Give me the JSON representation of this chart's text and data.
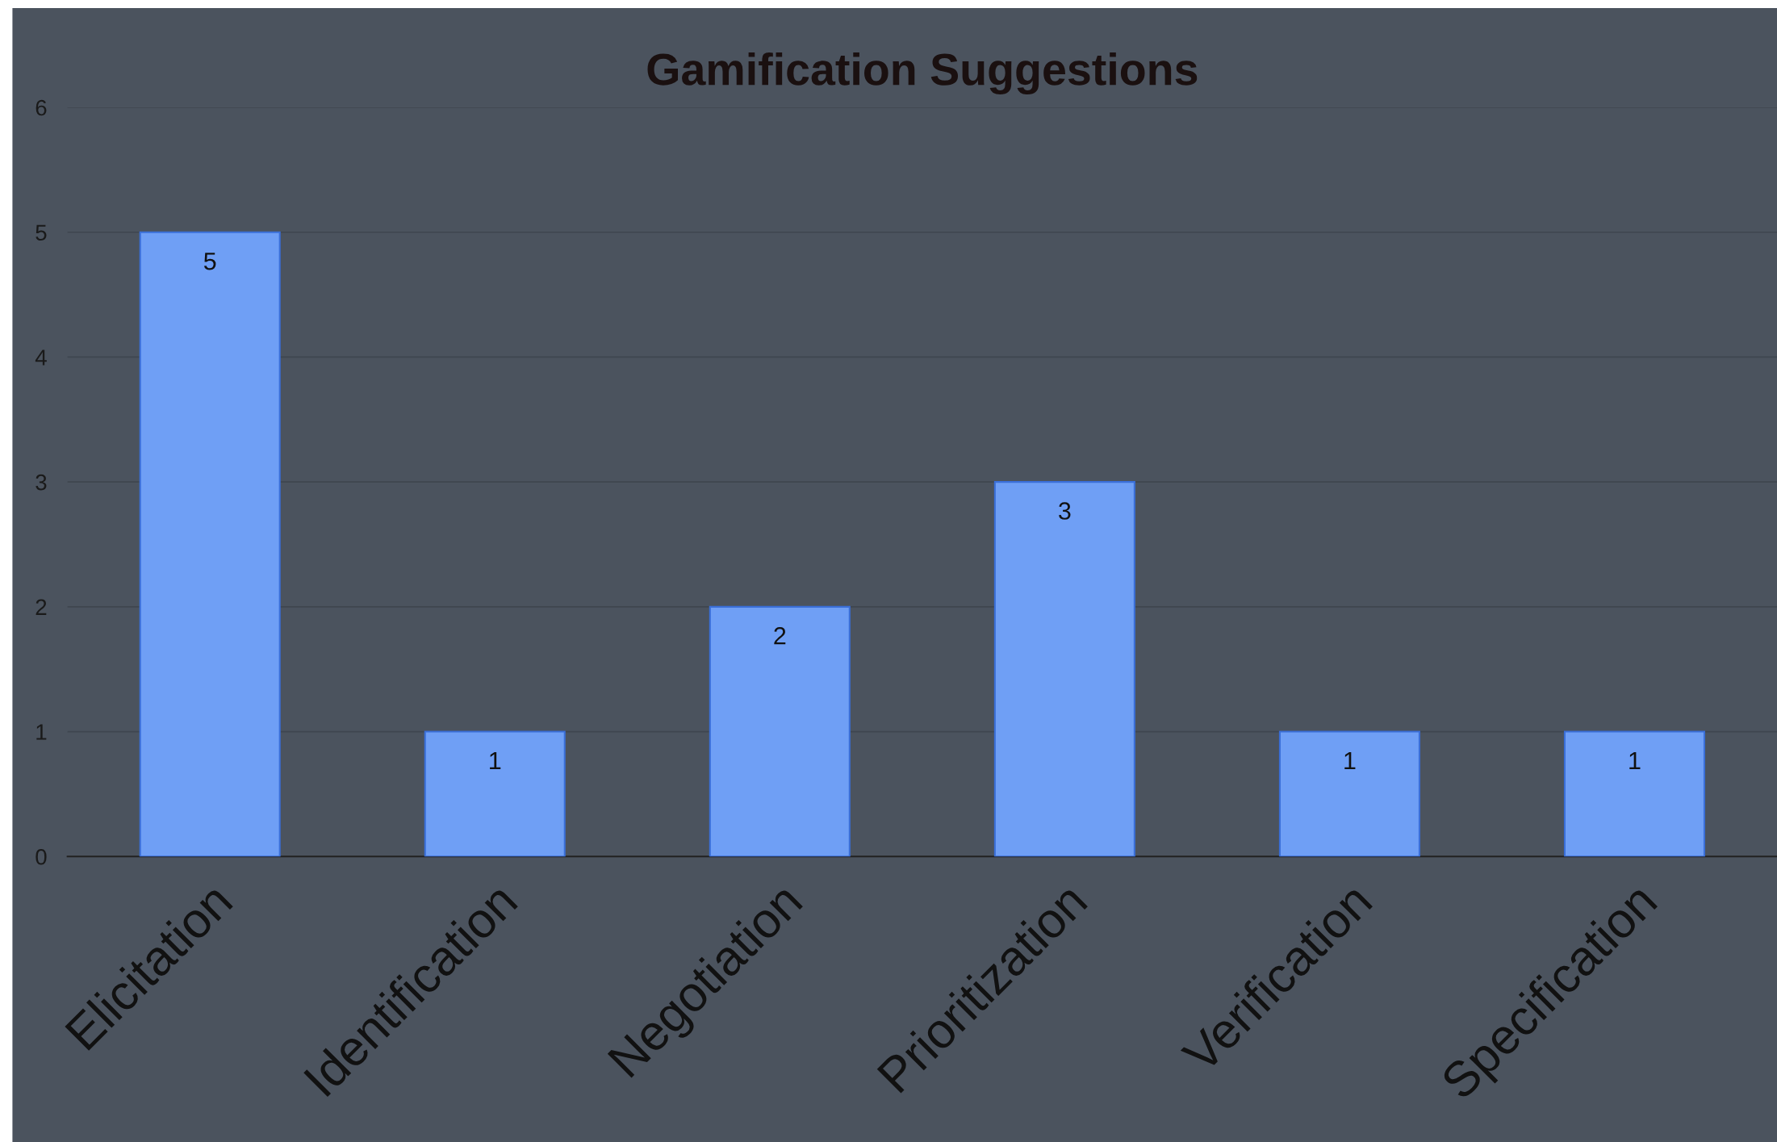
{
  "chart_data": {
    "type": "bar",
    "title": "Gamification Suggestions",
    "categories": [
      "Elicitation",
      "Identification",
      "Negotiation",
      "Prioritization",
      "Verification",
      "Specification"
    ],
    "values": [
      5,
      1,
      2,
      3,
      1,
      1
    ],
    "color": "#6f9ff5",
    "ylim": [
      0,
      6
    ],
    "yticks": [
      0,
      1,
      2,
      3,
      4,
      5,
      6
    ],
    "grid": "y",
    "data_labels": true,
    "legend": false
  }
}
